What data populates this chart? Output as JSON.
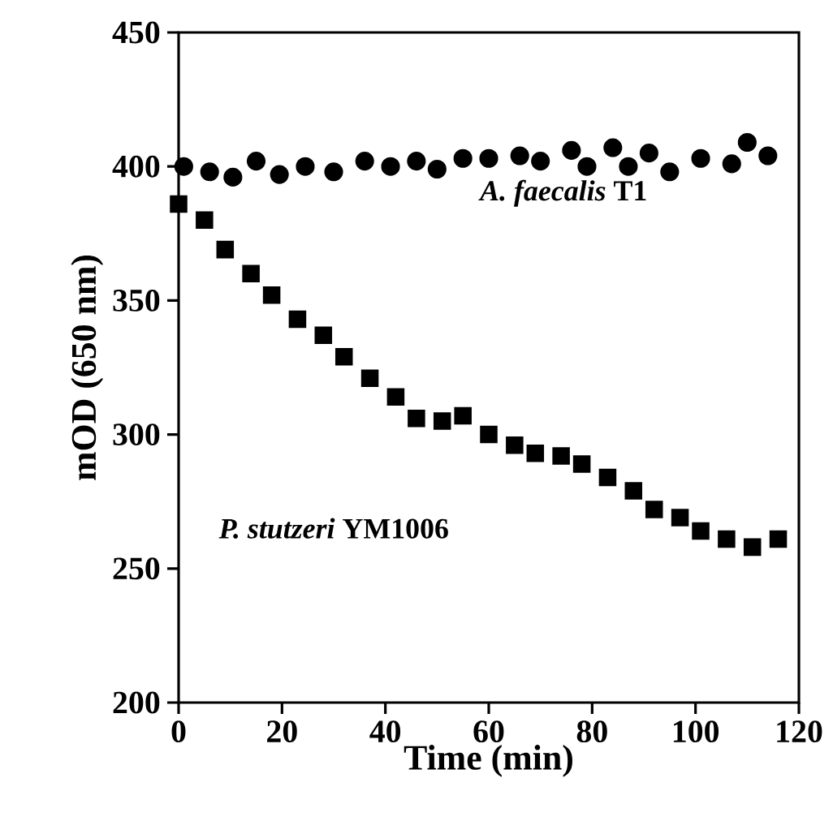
{
  "chart_data": {
    "type": "scatter",
    "xlabel": "Time (min)",
    "ylabel": "mOD (650 nm)",
    "xlim": [
      0,
      120
    ],
    "xticks": [
      0,
      20,
      40,
      60,
      80,
      100,
      120
    ],
    "ylim": [
      200,
      450
    ],
    "yticks": [
      200,
      250,
      300,
      350,
      400,
      450
    ],
    "series": [
      {
        "name": "*A. faecalis*  T1",
        "color": "#000000",
        "marker": "circle",
        "x": [
          1,
          6,
          10.5,
          15,
          19.5,
          24.5,
          30,
          36,
          41,
          46,
          50,
          55,
          60,
          66,
          70,
          76,
          79,
          84,
          87,
          91,
          95,
          101,
          107,
          110,
          114
        ],
        "values": [
          400,
          398,
          396,
          402,
          397,
          400,
          398,
          402,
          400,
          402,
          399,
          403,
          403,
          404,
          402,
          406,
          400,
          407,
          400,
          405,
          398,
          403,
          401,
          409,
          404
        ]
      },
      {
        "name": "*P. stutzeri*  YM1006",
        "color": "#000000",
        "marker": "square",
        "x": [
          0,
          5,
          9,
          14,
          18,
          23,
          28,
          32,
          37,
          42,
          46,
          51,
          55,
          60,
          65,
          69,
          74,
          78,
          83,
          88,
          92,
          97,
          101,
          106,
          111,
          116
        ],
        "values": [
          386,
          380,
          369,
          360,
          352,
          343,
          337,
          329,
          321,
          314,
          306,
          305,
          307,
          300,
          296,
          293,
          292,
          289,
          284,
          279,
          272,
          269,
          264,
          261,
          258,
          261
        ]
      }
    ]
  }
}
